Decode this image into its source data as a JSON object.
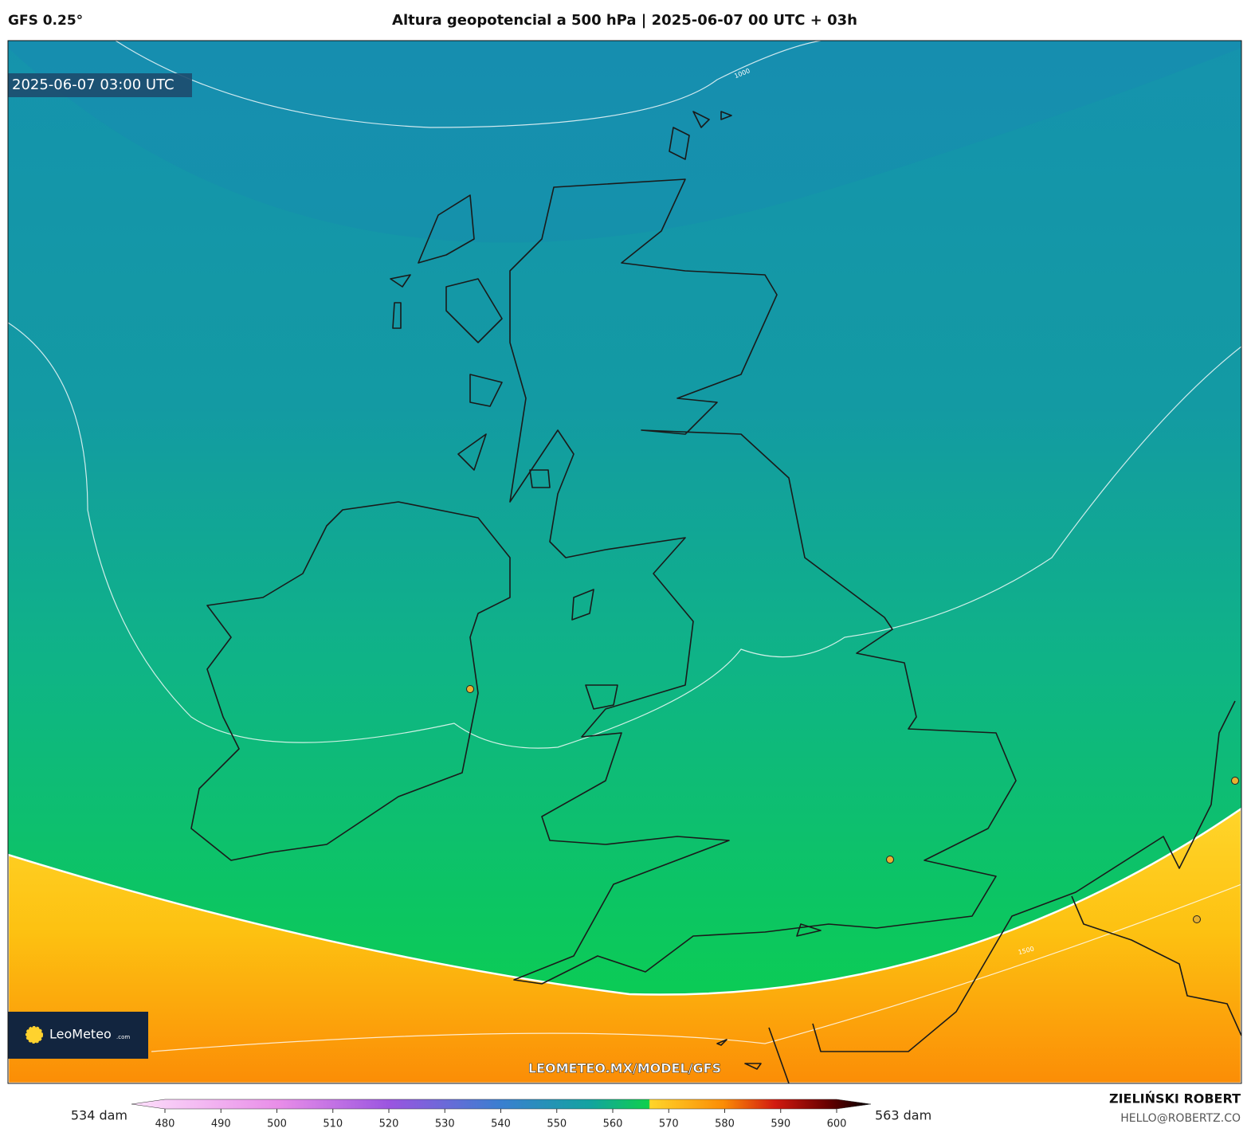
{
  "header": {
    "model": "GFS 0.25°",
    "title": "Altura geopotencial a 500 hPa | 2025-06-07 00 UTC + 03h"
  },
  "map": {
    "timestamp": "2025-06-07 03:00 UTC",
    "contour_labels": [
      "1000",
      "1500"
    ],
    "logo_name": "LeoMeteo",
    "logo_suffix": ".com",
    "watermark": "LEOMETEO.MX/MODEL/GFS"
  },
  "colorbar": {
    "min_label": "534 dam",
    "max_label": "563 dam",
    "ticks": [
      480,
      490,
      500,
      510,
      520,
      530,
      540,
      550,
      560,
      570,
      580,
      590,
      600
    ]
  },
  "credits": {
    "author": "ZIELIŃSKI ROBERT",
    "contact": "HELLO@ROBERTZ.CO"
  }
}
